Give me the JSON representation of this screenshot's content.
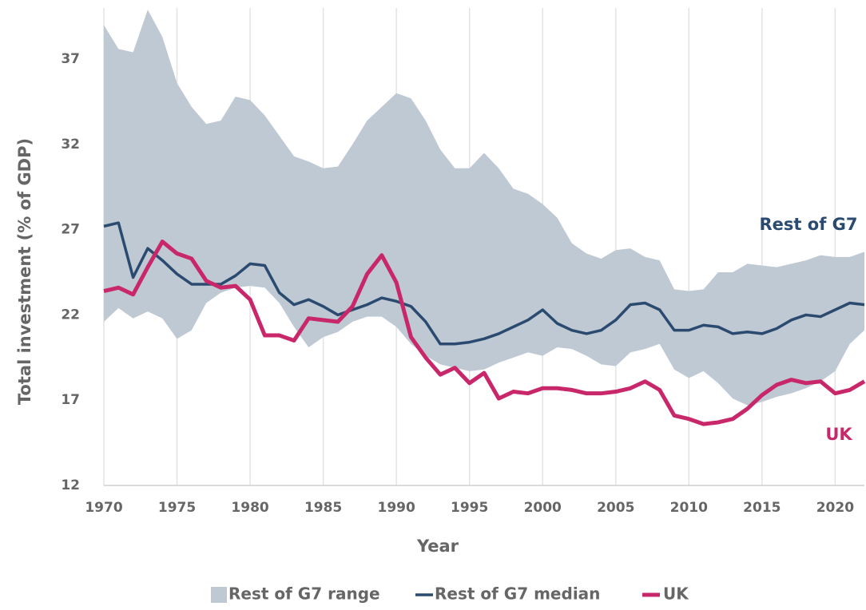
{
  "chart_data": {
    "type": "line",
    "xlabel": "Year",
    "ylabel": "Total investment (% of GDP)",
    "x": [
      1970,
      1971,
      1972,
      1973,
      1974,
      1975,
      1976,
      1977,
      1978,
      1979,
      1980,
      1981,
      1982,
      1983,
      1984,
      1985,
      1986,
      1987,
      1988,
      1989,
      1990,
      1991,
      1992,
      1993,
      1994,
      1995,
      1996,
      1997,
      1998,
      1999,
      2000,
      2001,
      2002,
      2003,
      2004,
      2005,
      2006,
      2007,
      2008,
      2009,
      2010,
      2011,
      2012,
      2013,
      2014,
      2015,
      2016,
      2017,
      2018,
      2019,
      2020,
      2021,
      2022
    ],
    "xlim": [
      1970,
      2022
    ],
    "xticks": [
      1970,
      1975,
      1980,
      1985,
      1990,
      1995,
      2000,
      2005,
      2010,
      2015,
      2020
    ],
    "ylim": [
      12,
      40
    ],
    "yticks": [
      12,
      17,
      22,
      27,
      32,
      37
    ],
    "grid": "x",
    "legend": "bottom",
    "band": {
      "name": "Rest of G7 range",
      "color": "#bfc9d3",
      "upper": [
        39.0,
        37.6,
        37.4,
        39.9,
        38.3,
        35.6,
        34.2,
        33.2,
        33.4,
        34.8,
        34.6,
        33.7,
        32.5,
        31.3,
        31.0,
        30.6,
        30.7,
        32.0,
        33.4,
        34.2,
        35.0,
        34.7,
        33.4,
        31.7,
        30.6,
        30.6,
        31.5,
        30.6,
        29.4,
        29.1,
        28.5,
        27.7,
        26.2,
        25.6,
        25.3,
        25.8,
        25.9,
        25.4,
        25.2,
        23.5,
        23.4,
        23.5,
        24.5,
        24.5,
        25.0,
        24.9,
        24.8,
        25.0,
        25.2,
        25.5,
        25.4,
        25.4,
        25.7
      ],
      "lower": [
        21.6,
        22.4,
        21.8,
        22.2,
        21.8,
        20.6,
        21.1,
        22.7,
        23.3,
        23.6,
        23.7,
        23.6,
        22.7,
        21.3,
        20.1,
        20.7,
        21.0,
        21.6,
        21.9,
        21.9,
        21.3,
        20.3,
        19.6,
        19.1,
        18.9,
        18.7,
        18.8,
        19.2,
        19.5,
        19.8,
        19.6,
        20.1,
        20.0,
        19.6,
        19.1,
        19.0,
        19.8,
        20.0,
        20.3,
        18.8,
        18.3,
        18.7,
        18.0,
        17.1,
        16.7,
        16.9,
        17.2,
        17.4,
        17.7,
        18.1,
        18.7,
        20.3,
        21.1
      ]
    },
    "series": [
      {
        "name": "Rest of G7 median",
        "color": "#2b4a6f",
        "width": 3.5,
        "values": [
          27.2,
          27.4,
          24.2,
          25.9,
          25.2,
          24.4,
          23.8,
          23.8,
          23.8,
          24.3,
          25.0,
          24.9,
          23.3,
          22.6,
          22.9,
          22.5,
          22.0,
          22.3,
          22.6,
          23.0,
          22.8,
          22.5,
          21.6,
          20.3,
          20.3,
          20.4,
          20.6,
          20.9,
          21.3,
          21.7,
          22.3,
          21.5,
          21.1,
          20.9,
          21.1,
          21.7,
          22.6,
          22.7,
          22.3,
          21.1,
          21.1,
          21.4,
          21.3,
          20.9,
          21.0,
          20.9,
          21.2,
          21.7,
          22.0,
          21.9,
          22.3,
          22.7,
          22.6
        ]
      },
      {
        "name": "UK",
        "color": "#c8286a",
        "width": 5,
        "values": [
          23.4,
          23.6,
          23.2,
          24.8,
          26.3,
          25.6,
          25.3,
          24.0,
          23.6,
          23.7,
          22.9,
          20.8,
          20.8,
          20.5,
          21.8,
          21.7,
          21.6,
          22.5,
          24.4,
          25.5,
          23.9,
          20.7,
          19.5,
          18.5,
          18.9,
          18.0,
          18.6,
          17.1,
          17.5,
          17.4,
          17.7,
          17.7,
          17.6,
          17.4,
          17.4,
          17.5,
          17.7,
          18.1,
          17.6,
          16.1,
          15.9,
          15.6,
          15.7,
          15.9,
          16.5,
          17.3,
          17.9,
          18.2,
          18.0,
          18.1,
          17.4,
          17.6,
          18.1
        ]
      }
    ],
    "annotations": [
      {
        "text": "Rest of G7",
        "color": "#2b4a6f"
      },
      {
        "text": "UK",
        "color": "#c8286a"
      }
    ]
  }
}
